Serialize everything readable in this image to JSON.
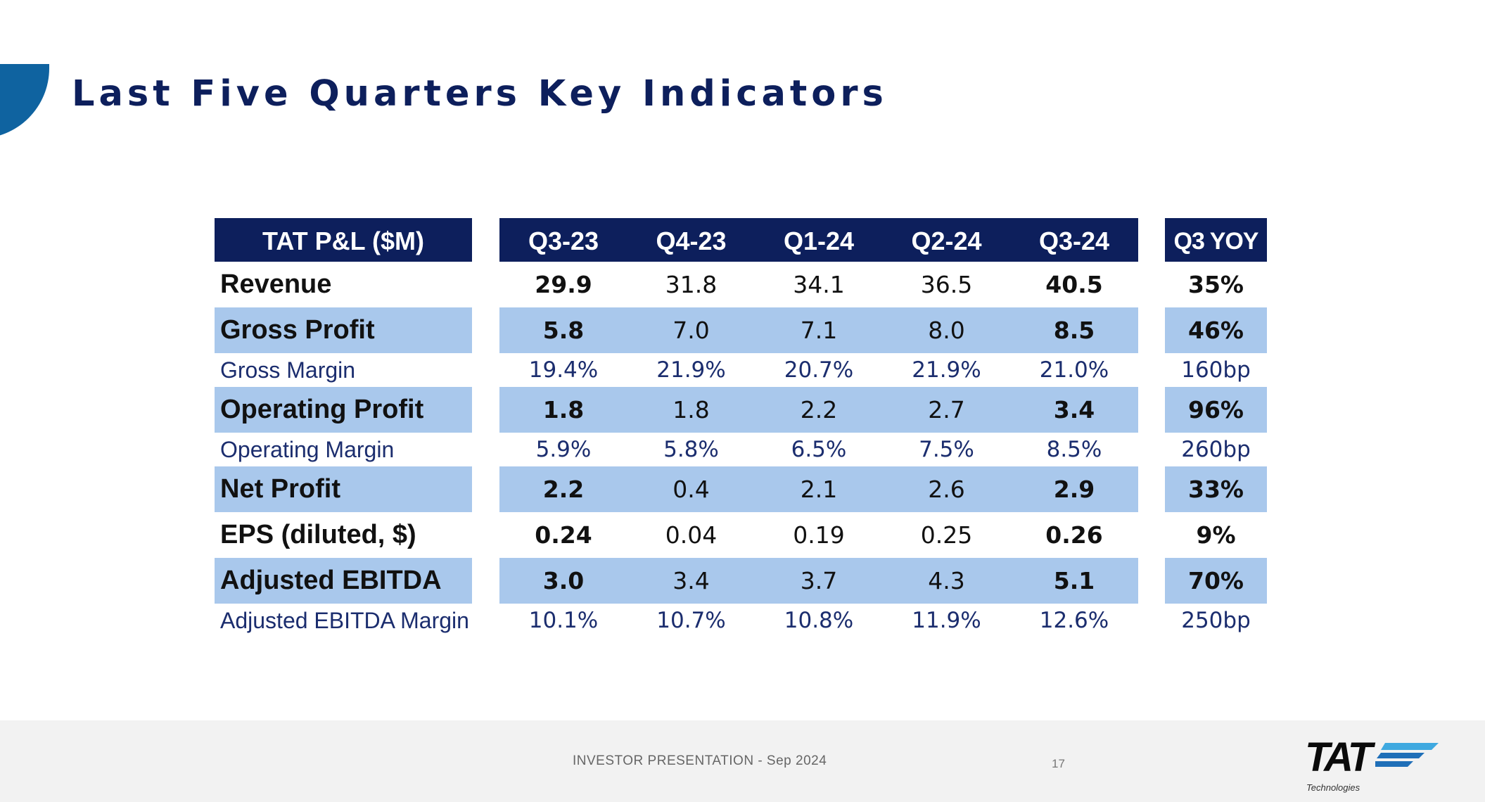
{
  "title": "Last Five Quarters Key Indicators",
  "table": {
    "header": {
      "label": "TAT P&L ($M)",
      "quarters": [
        "Q3-23",
        "Q4-23",
        "Q1-24",
        "Q2-24",
        "Q3-24"
      ],
      "yoy": "Q3 YOY"
    },
    "rows": [
      {
        "label": "Revenue",
        "values": [
          "29.9",
          "31.8",
          "34.1",
          "36.5",
          "40.5"
        ],
        "yoy": "35%"
      },
      {
        "label": "Gross Profit",
        "values": [
          "5.8",
          "7.0",
          "7.1",
          "8.0",
          "8.5"
        ],
        "yoy": "46%"
      },
      {
        "label": "Gross Margin",
        "values": [
          "19.4%",
          "21.9%",
          "20.7%",
          "21.9%",
          "21.0%"
        ],
        "yoy": "160bp"
      },
      {
        "label": "Operating Profit",
        "values": [
          "1.8",
          "1.8",
          "2.2",
          "2.7",
          "3.4"
        ],
        "yoy": "96%"
      },
      {
        "label": "Operating Margin",
        "values": [
          "5.9%",
          "5.8%",
          "6.5%",
          "7.5%",
          "8.5%"
        ],
        "yoy": "260bp"
      },
      {
        "label": "Net Profit",
        "values": [
          "2.2",
          "0.4",
          "2.1",
          "2.6",
          "2.9"
        ],
        "yoy": "33%"
      },
      {
        "label": "EPS (diluted, $)",
        "values": [
          "0.24",
          "0.04",
          "0.19",
          "0.25",
          "0.26"
        ],
        "yoy": "9%"
      },
      {
        "label": "Adjusted EBITDA",
        "values": [
          "3.0",
          "3.4",
          "3.7",
          "4.3",
          "5.1"
        ],
        "yoy": "70%"
      },
      {
        "label": "Adjusted EBITDA Margin",
        "values": [
          "10.1%",
          "10.7%",
          "10.8%",
          "11.9%",
          "12.6%"
        ],
        "yoy": "250bp"
      }
    ]
  },
  "footer": {
    "text": "INVESTOR PRESENTATION - Sep 2024",
    "page": "17"
  },
  "logo": {
    "word": "TAT",
    "sub": "Technologies",
    "colors": [
      "#3fa9e0",
      "#1f6fb8"
    ]
  }
}
